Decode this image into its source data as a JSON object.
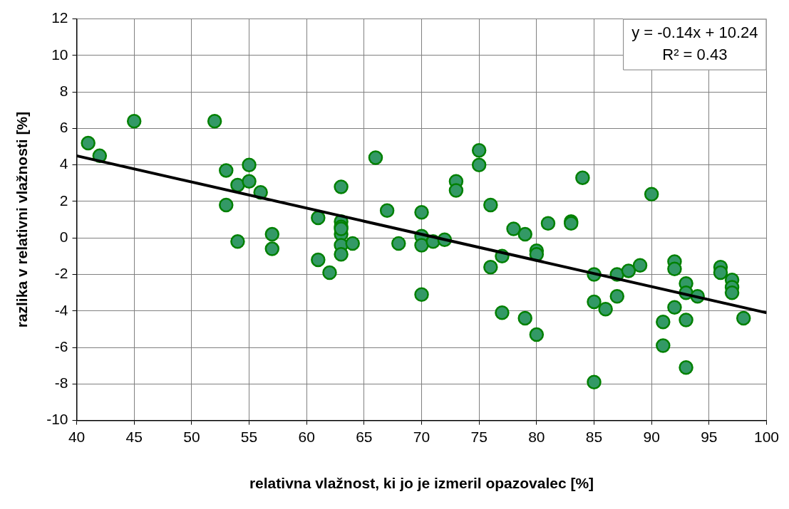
{
  "chart_data": {
    "type": "scatter",
    "xlabel": "relativna vlažnost, ki jo je izmeril opazovalec [%]",
    "ylabel": "razlika v relativni vlažnosti [%]",
    "xlim": [
      40,
      100
    ],
    "xticks": [
      40,
      45,
      50,
      55,
      60,
      65,
      70,
      75,
      80,
      85,
      90,
      95,
      100
    ],
    "ylim": [
      -10,
      12
    ],
    "yticks": [
      -10,
      -8,
      -6,
      -4,
      -2,
      0,
      2,
      4,
      6,
      8,
      10,
      12
    ],
    "grid": true,
    "marker": "circle",
    "annotations": [
      "y = -0.14x + 10.24",
      "R² = 0.43"
    ],
    "series": [
      {
        "color": "#339966",
        "x": [
          41,
          42,
          45,
          52,
          53,
          53,
          54,
          54,
          55,
          55,
          56,
          57,
          57,
          61,
          61,
          62,
          63,
          63,
          63,
          63,
          63,
          63,
          63,
          64,
          66,
          67,
          68,
          70,
          70,
          70,
          70,
          71,
          72,
          73,
          73,
          75,
          75,
          76,
          76,
          77,
          77,
          78,
          79,
          79,
          80,
          80,
          80,
          81,
          83,
          83,
          84,
          85,
          85,
          85,
          86,
          87,
          87,
          88,
          89,
          90,
          91,
          91,
          92,
          92,
          92,
          93,
          93,
          93,
          93,
          94,
          96,
          96,
          97,
          97,
          97,
          98
        ],
        "values": [
          5.2,
          4.5,
          6.4,
          6.4,
          3.7,
          1.8,
          2.9,
          -0.2,
          4.0,
          3.1,
          2.5,
          0.2,
          -0.6,
          1.1,
          -1.2,
          -1.9,
          2.8,
          0.9,
          0.6,
          0.2,
          -0.4,
          -0.9,
          0.5,
          -0.3,
          4.4,
          1.5,
          -0.3,
          1.4,
          0.1,
          -0.4,
          -3.1,
          -0.2,
          -0.1,
          3.1,
          2.6,
          4.8,
          4.0,
          1.8,
          -1.6,
          -1.0,
          -4.1,
          0.5,
          0.2,
          -4.4,
          -0.7,
          -0.9,
          -5.3,
          0.8,
          0.9,
          0.8,
          3.3,
          -2.0,
          -3.5,
          -7.9,
          -3.9,
          -2.0,
          -3.2,
          -1.8,
          -1.5,
          2.4,
          -4.6,
          -5.9,
          -1.3,
          -1.7,
          -3.8,
          -2.5,
          -3.0,
          -4.5,
          -7.1,
          -3.2,
          -1.6,
          -1.9,
          -2.3,
          -2.7,
          -3.0,
          -4.4
        ]
      },
      {
        "type": "line",
        "color": "#000000",
        "marker": "none",
        "x": [
          40,
          100
        ],
        "values": [
          4.5,
          -4.1
        ]
      }
    ]
  }
}
